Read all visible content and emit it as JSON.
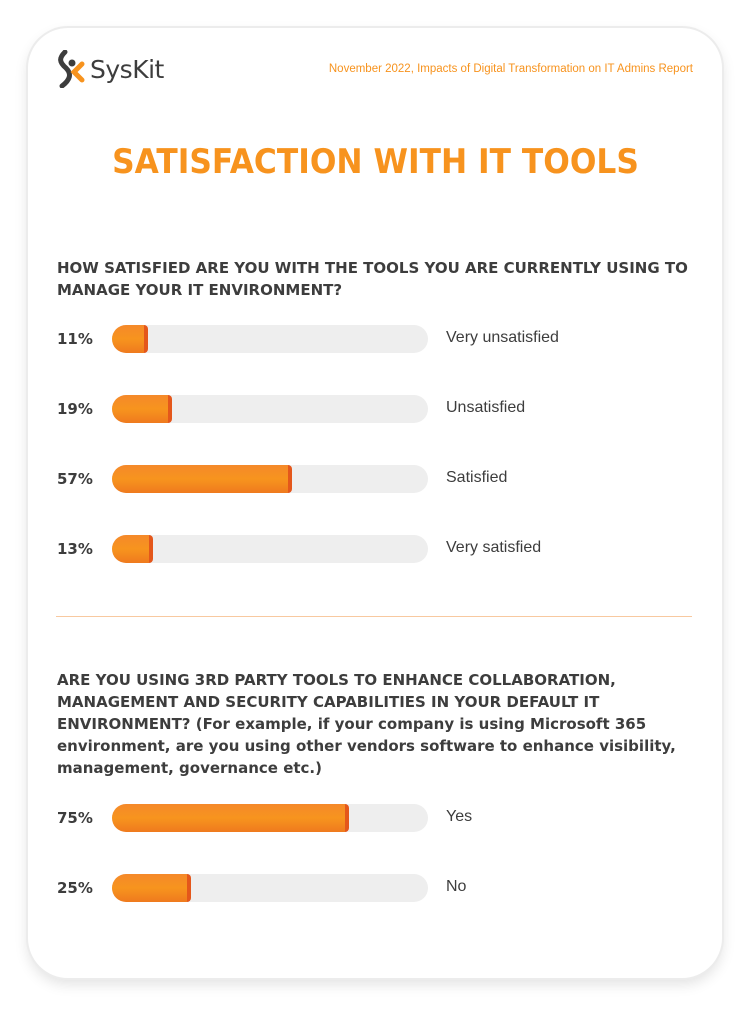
{
  "header": {
    "brand": "SysKit",
    "report": "November 2022, Impacts of Digital Transformation on IT Admins Report"
  },
  "title": "SATISFACTION WITH IT TOOLS",
  "colors": {
    "accent": "#f7931e",
    "bar_edge": "#e4571b",
    "track": "#eeeeee",
    "text": "#3d3d3d"
  },
  "chart_data": [
    {
      "type": "bar",
      "orientation": "horizontal",
      "title": "HOW SATISFIED ARE YOU WITH THE TOOLS YOU ARE CURRENTLY USING TO MANAGE YOUR IT ENVIRONMENT?",
      "categories": [
        "Very unsatisfied",
        "Unsatisfied",
        "Satisfied",
        "Very satisfied"
      ],
      "values": [
        11,
        19,
        57,
        13
      ],
      "labels": [
        "11%",
        "19%",
        "57%",
        "13%"
      ],
      "xlim": [
        0,
        100
      ]
    },
    {
      "type": "bar",
      "orientation": "horizontal",
      "title": "ARE YOU USING 3RD PARTY TOOLS TO ENHANCE COLLABORATION, MANAGEMENT AND SECURITY CAPABILITIES IN YOUR DEFAULT IT ENVIRONMENT? (For example, if your company is using Microsoft 365 environment, are you using other vendors software to enhance visibility, management, governance etc.)",
      "categories": [
        "Yes",
        "No"
      ],
      "values": [
        75,
        25
      ],
      "labels": [
        "75%",
        "25%"
      ],
      "xlim": [
        0,
        100
      ]
    }
  ]
}
